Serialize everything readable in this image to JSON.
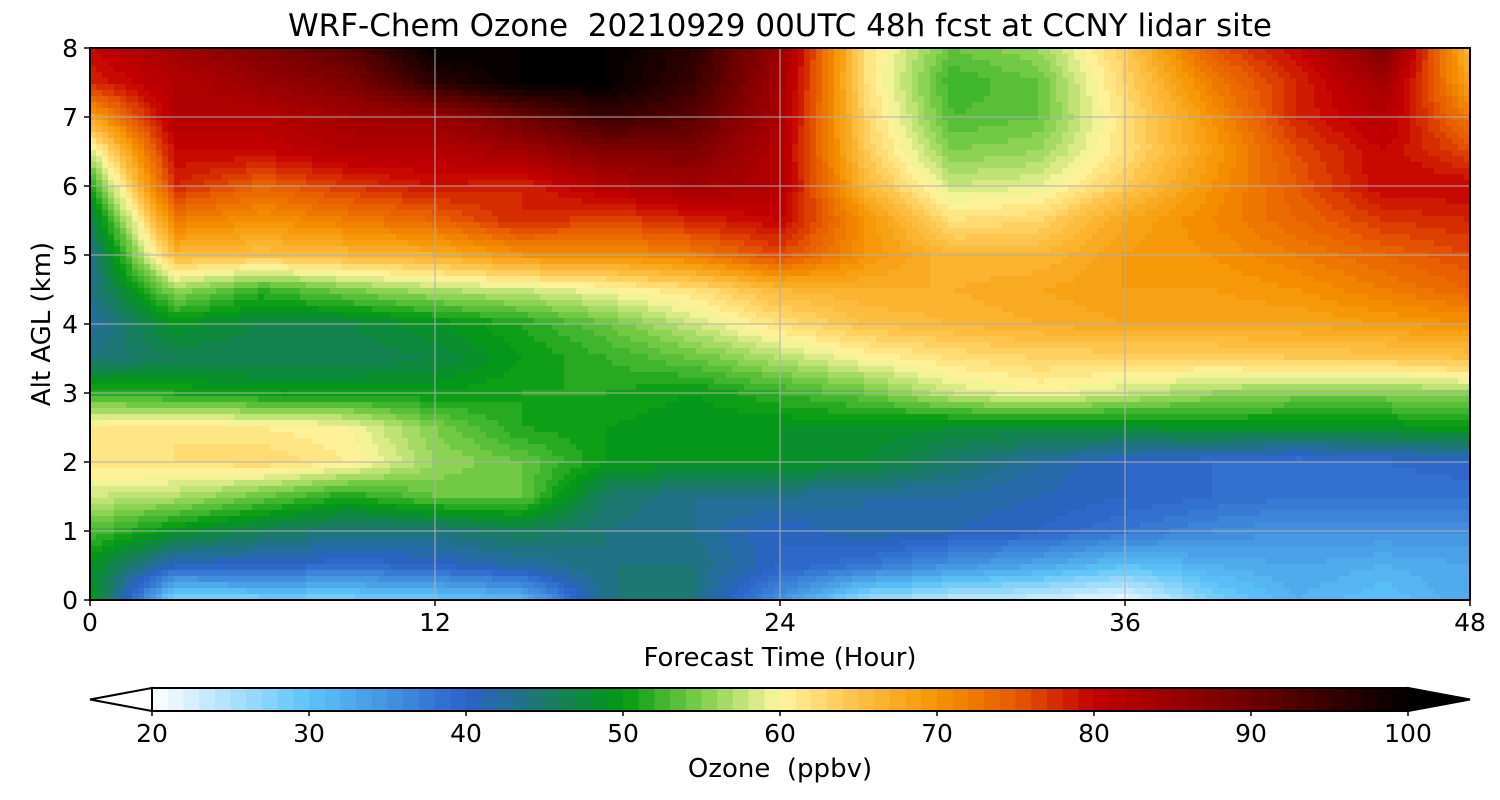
{
  "chart_data": {
    "type": "heatmap",
    "title": "WRF-Chem Ozone  20210929 00UTC 48h fcst at CCNY lidar site",
    "xlabel": "Forecast Time (Hour)",
    "ylabel": "Alt AGL (km)",
    "xlim": [
      0,
      48
    ],
    "ylim": [
      0,
      8
    ],
    "xticks": [
      "0",
      "12",
      "24",
      "36",
      "48"
    ],
    "yticks": [
      "0",
      "1",
      "2",
      "3",
      "4",
      "5",
      "6",
      "7",
      "8"
    ],
    "grid": true,
    "colorbar": {
      "label": "Ozone  (ppbv)",
      "min": 20,
      "max": 100,
      "ticks": [
        "20",
        "30",
        "40",
        "50",
        "60",
        "70",
        "80",
        "90",
        "100"
      ],
      "extend": "both",
      "stops": [
        {
          "v": 20,
          "c": "#ffffff"
        },
        {
          "v": 30,
          "c": "#5cc3f8"
        },
        {
          "v": 40,
          "c": "#2a63c8"
        },
        {
          "v": 45,
          "c": "#1b7a6a"
        },
        {
          "v": 50,
          "c": "#019a11"
        },
        {
          "v": 55,
          "c": "#7fcf4a"
        },
        {
          "v": 60,
          "c": "#fff6a0"
        },
        {
          "v": 65,
          "c": "#fdc045"
        },
        {
          "v": 70,
          "c": "#f59400"
        },
        {
          "v": 75,
          "c": "#e75a00"
        },
        {
          "v": 80,
          "c": "#c40000"
        },
        {
          "v": 90,
          "c": "#6e0000"
        },
        {
          "v": 100,
          "c": "#000000"
        }
      ]
    },
    "hours": [
      0,
      3,
      6,
      9,
      12,
      15,
      18,
      21,
      24,
      27,
      30,
      33,
      36,
      39,
      42,
      45,
      48
    ],
    "altitudes_km": [
      0,
      0.5,
      1,
      1.5,
      2,
      2.5,
      3,
      3.5,
      4,
      4.5,
      5,
      5.5,
      6,
      6.5,
      7,
      7.5,
      8
    ],
    "ozone_ppbv": [
      [
        50,
        27,
        28,
        28,
        29,
        31,
        44,
        44,
        35,
        26,
        24,
        23,
        21,
        28,
        32,
        30,
        33
      ],
      [
        49,
        40,
        40,
        39,
        40,
        42,
        44,
        44,
        40,
        38,
        35,
        33,
        30,
        32,
        33,
        32,
        33
      ],
      [
        53,
        49,
        46,
        44,
        44,
        46,
        44,
        43,
        40,
        42,
        41,
        40,
        38,
        36,
        35,
        35,
        35
      ],
      [
        58,
        57,
        54,
        51,
        54,
        54,
        45,
        43,
        43,
        42,
        42,
        41,
        40,
        39,
        38,
        38,
        38
      ],
      [
        62,
        62,
        63,
        61,
        56,
        54,
        50,
        49,
        49,
        48,
        45,
        42,
        40,
        39,
        38,
        39,
        40
      ],
      [
        61,
        62,
        61,
        60,
        55,
        51,
        50,
        49,
        49,
        49,
        48,
        48,
        48,
        49,
        49,
        49,
        50
      ],
      [
        52,
        51,
        50,
        50,
        50,
        51,
        51,
        50,
        52,
        54,
        58,
        60,
        58,
        56,
        55,
        55,
        56
      ],
      [
        44,
        46,
        46,
        46,
        47,
        50,
        52,
        54,
        57,
        60,
        62,
        63,
        63,
        63,
        64,
        64,
        65
      ],
      [
        42,
        49,
        47,
        47,
        49,
        51,
        54,
        58,
        62,
        65,
        66,
        67,
        68,
        68,
        68,
        69,
        70
      ],
      [
        43,
        56,
        52,
        55,
        57,
        58,
        60,
        62,
        66,
        67,
        67,
        68,
        69,
        69,
        70,
        72,
        74
      ],
      [
        43,
        66,
        65,
        66,
        67,
        70,
        70,
        72,
        76,
        70,
        66,
        66,
        69,
        70,
        72,
        74,
        76
      ],
      [
        46,
        72,
        70,
        72,
        74,
        78,
        76,
        78,
        80,
        70,
        62,
        63,
        68,
        71,
        74,
        77,
        78
      ],
      [
        51,
        78,
        74,
        77,
        79,
        78,
        82,
        84,
        82,
        66,
        58,
        59,
        64,
        70,
        75,
        80,
        80
      ],
      [
        58,
        80,
        80,
        82,
        82,
        84,
        88,
        88,
        82,
        64,
        55,
        56,
        62,
        69,
        76,
        80,
        76
      ],
      [
        68,
        82,
        82,
        84,
        85,
        90,
        95,
        92,
        83,
        63,
        53,
        54,
        62,
        70,
        78,
        82,
        72
      ],
      [
        78,
        82,
        85,
        88,
        96,
        100,
        100,
        95,
        84,
        62,
        52,
        54,
        63,
        72,
        78,
        84,
        68
      ],
      [
        80,
        84,
        88,
        92,
        100,
        100,
        100,
        96,
        85,
        62,
        54,
        56,
        64,
        75,
        80,
        88,
        66
      ]
    ]
  }
}
